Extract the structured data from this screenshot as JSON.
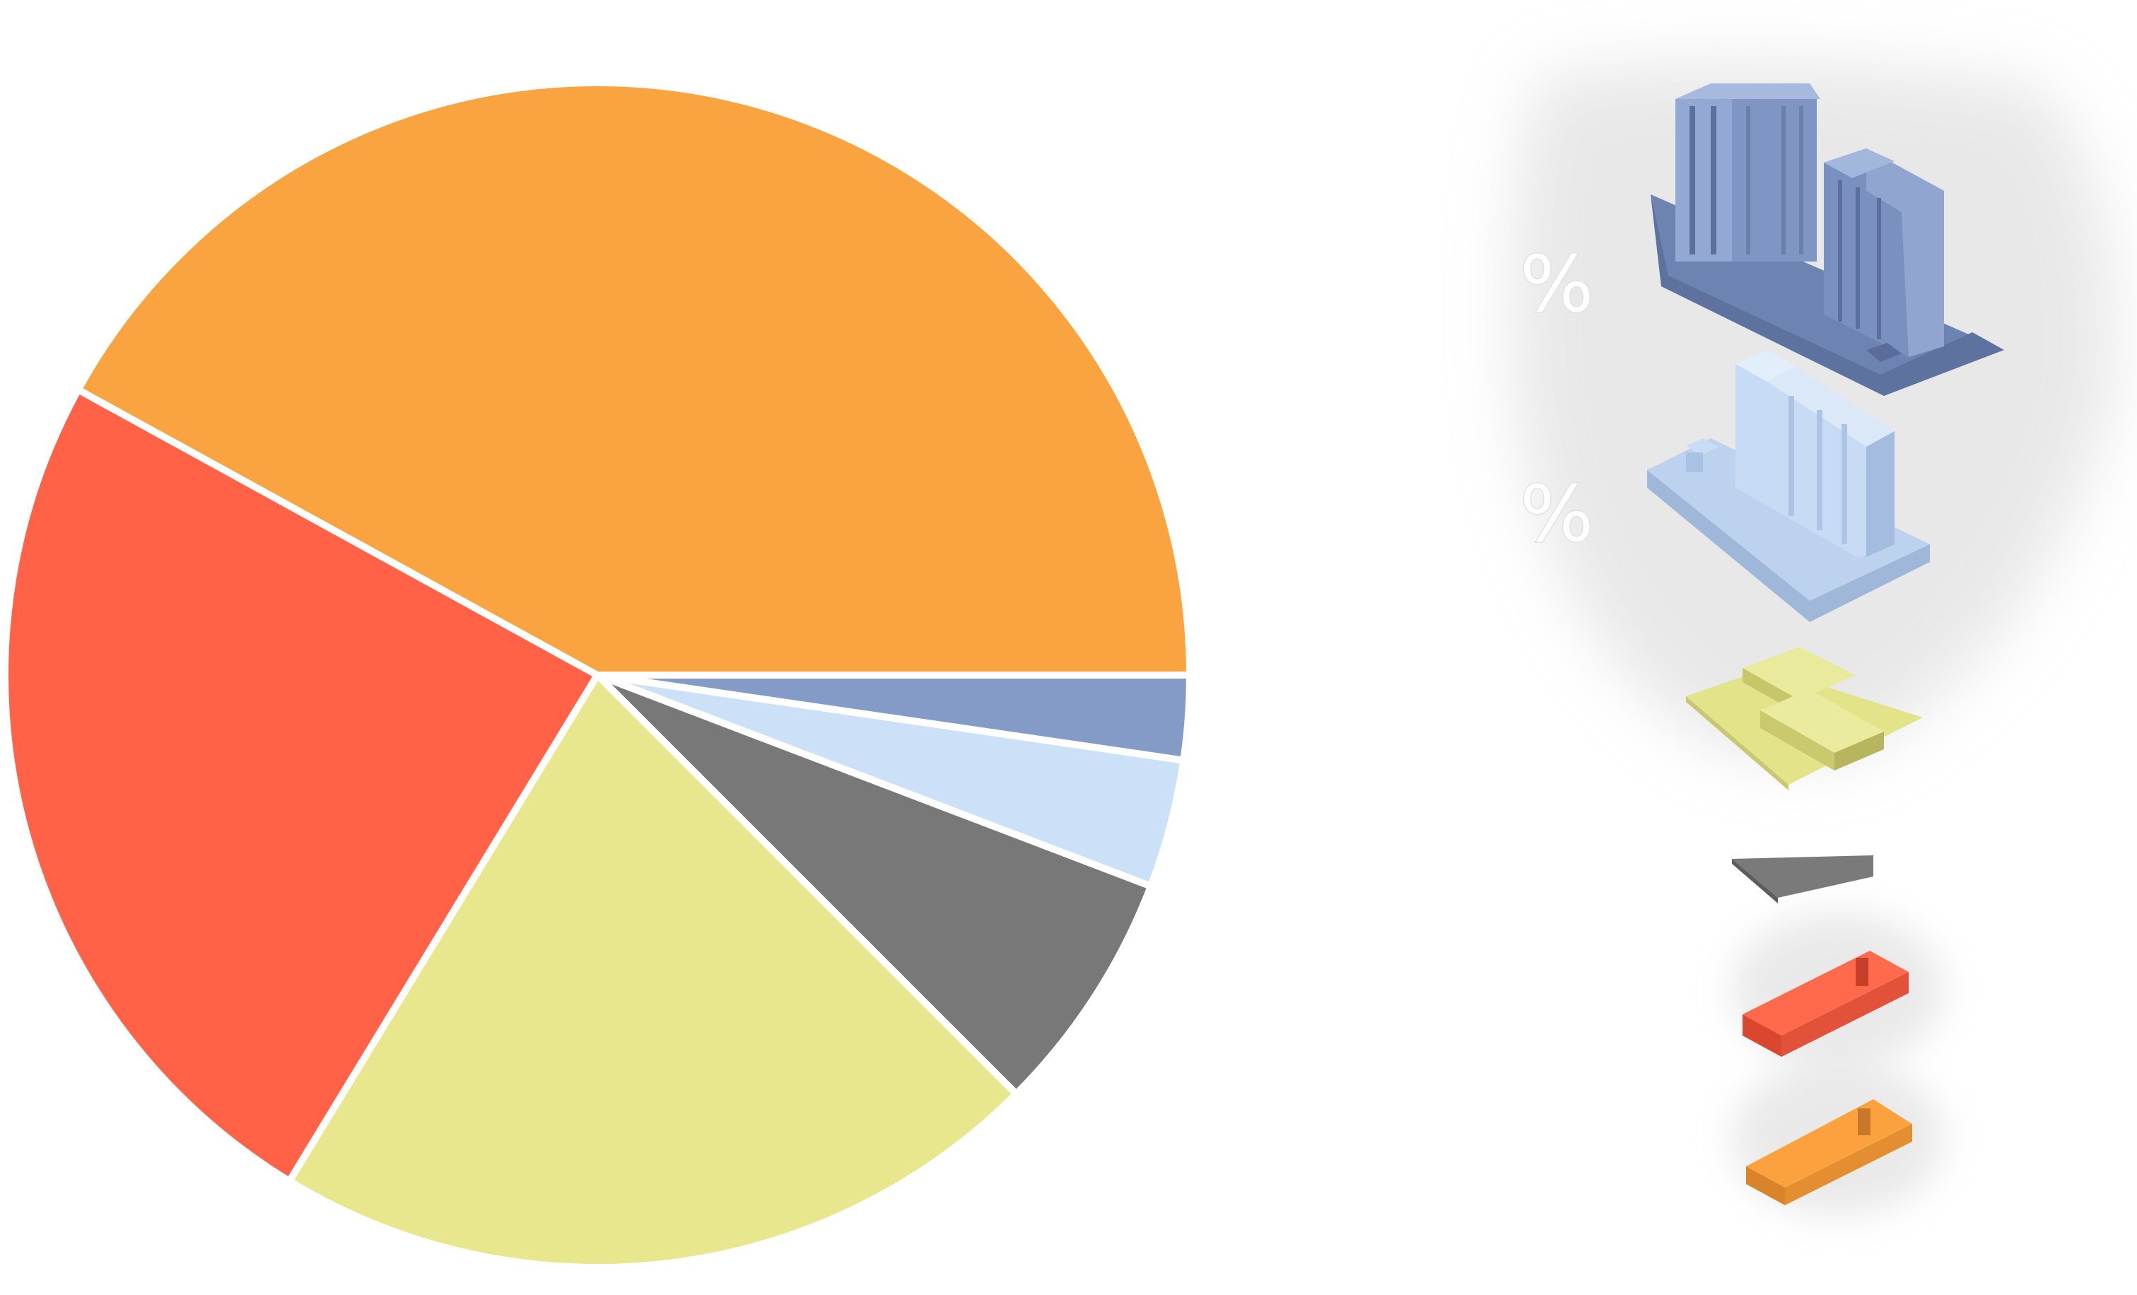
{
  "chart_data": {
    "type": "pie",
    "title": "",
    "slices": [
      {
        "value": 2.3,
        "color": "#849BC8"
      },
      {
        "value": 3.5,
        "color": "#CCE0F8"
      },
      {
        "value": 6.7,
        "color": "#787878"
      },
      {
        "value": 21.2,
        "color": "#E8E78E"
      },
      {
        "value": 24.3,
        "color": "#FF6246"
      },
      {
        "value": 42.0,
        "color": "#FAA441"
      }
    ],
    "start_angle_deg": 0,
    "direction": "clockwise",
    "legend": {
      "placement": "right",
      "items": [
        {
          "icon": "two-tower-building-block-icon",
          "color": "#849BC8",
          "label": "%"
        },
        {
          "icon": "tall-slab-building-block-icon",
          "color": "#CCE0F8",
          "label": "%"
        },
        {
          "icon": "low-rise-building-block-icon",
          "color": "#E8E78E"
        },
        {
          "icon": "paved-plot-icon",
          "color": "#787878"
        },
        {
          "icon": "small-building-block-icon",
          "color": "#FF6246"
        },
        {
          "icon": "small-building-block-icon",
          "color": "#FAA441"
        }
      ]
    }
  }
}
